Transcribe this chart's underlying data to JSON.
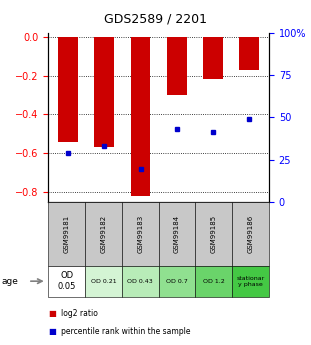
{
  "title": "GDS2589 / 2201",
  "samples": [
    "GSM99181",
    "GSM99182",
    "GSM99183",
    "GSM99184",
    "GSM99185",
    "GSM99186"
  ],
  "log2_ratio": [
    -0.54,
    -0.57,
    -0.82,
    -0.3,
    -0.22,
    -0.17
  ],
  "percentile_rank_left": [
    -0.6,
    -0.565,
    -0.68,
    -0.475,
    -0.49,
    -0.425
  ],
  "ylim_left": [
    -0.85,
    0.02
  ],
  "ylim_right": [
    0,
    100
  ],
  "yticks_left": [
    0,
    -0.2,
    -0.4,
    -0.6,
    -0.8
  ],
  "yticks_right": [
    0,
    25,
    50,
    75,
    100
  ],
  "age_labels": [
    "OD\n0.05",
    "OD 0.21",
    "OD 0.43",
    "OD 0.7",
    "OD 1.2",
    "stationar\ny phase"
  ],
  "age_bg_colors": [
    "#ffffff",
    "#d4f4d4",
    "#b8ecb8",
    "#90e090",
    "#6ad46a",
    "#44c844"
  ],
  "sample_bg_color": "#c8c8c8",
  "bar_color": "#cc0000",
  "dot_color": "#0000cc",
  "legend_red": "log2 ratio",
  "legend_blue": "percentile rank within the sample"
}
